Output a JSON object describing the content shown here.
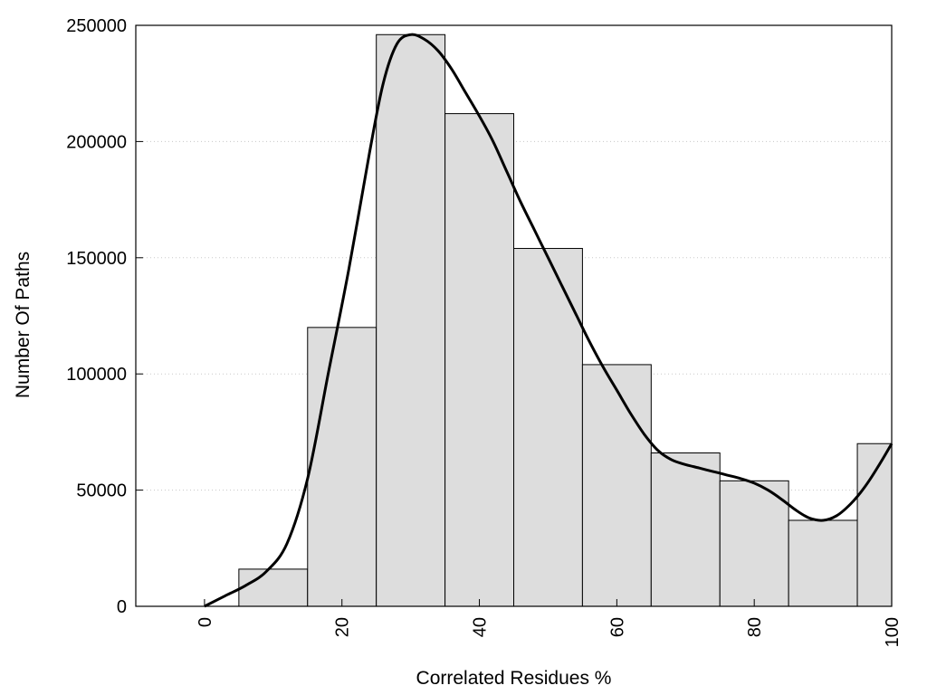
{
  "chart_data": {
    "type": "bar",
    "xlabel": "Correlated Residues %",
    "ylabel": "Number Of Paths",
    "xlim": [
      -10,
      100
    ],
    "ylim": [
      0,
      250000
    ],
    "x_ticks": [
      "0",
      "20",
      "40",
      "60",
      "80",
      "100"
    ],
    "y_ticks": [
      "0",
      "50000",
      "100000",
      "150000",
      "200000",
      "250000"
    ],
    "grid": "horizontal dotted",
    "bar_color": "#dddddd",
    "bars": [
      {
        "x_start": -5,
        "x_end": 5,
        "value": 0
      },
      {
        "x_start": 5,
        "x_end": 15,
        "value": 16000
      },
      {
        "x_start": 15,
        "x_end": 25,
        "value": 120000
      },
      {
        "x_start": 25,
        "x_end": 35,
        "value": 246000
      },
      {
        "x_start": 35,
        "x_end": 45,
        "value": 212000
      },
      {
        "x_start": 45,
        "x_end": 55,
        "value": 154000
      },
      {
        "x_start": 55,
        "x_end": 65,
        "value": 104000
      },
      {
        "x_start": 65,
        "x_end": 75,
        "value": 66000
      },
      {
        "x_start": 75,
        "x_end": 85,
        "value": 54000
      },
      {
        "x_start": 85,
        "x_end": 95,
        "value": 37000
      },
      {
        "x_start": 95,
        "x_end": 100,
        "value": 70000
      }
    ],
    "density_curve": {
      "x": [
        0,
        3,
        6,
        9,
        12,
        15,
        18,
        21,
        24,
        26,
        28,
        30,
        32,
        34,
        36,
        38,
        40,
        42,
        44,
        46,
        48,
        50,
        52,
        54,
        56,
        58,
        60,
        62,
        64,
        66,
        68,
        70,
        72,
        74,
        76,
        78,
        80,
        82,
        84,
        86,
        88,
        90,
        92,
        94,
        96,
        98,
        100
      ],
      "y": [
        0,
        4500,
        9000,
        15000,
        27000,
        55000,
        100000,
        145000,
        195000,
        225000,
        242000,
        246000,
        244000,
        239000,
        231000,
        221000,
        211000,
        200000,
        187000,
        174000,
        162000,
        150000,
        138000,
        126000,
        114000,
        103000,
        93000,
        83000,
        74000,
        67000,
        63000,
        61000,
        59500,
        58000,
        56500,
        55000,
        53000,
        50000,
        46000,
        41500,
        38000,
        37000,
        39000,
        44000,
        51000,
        60000,
        70000
      ]
    }
  }
}
